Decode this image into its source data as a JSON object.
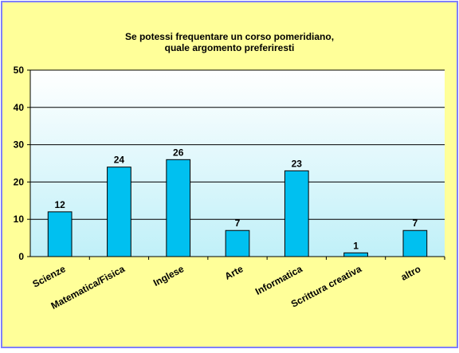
{
  "chart_data": {
    "type": "bar",
    "title": [
      "Se potessi  frequentare un corso  pomeridiano,",
      "quale argomento preferiresti"
    ],
    "xlabel": "",
    "ylabel": "",
    "categories": [
      "Scienze",
      "Matematica/Fisica",
      "Inglese",
      "Arte",
      "Informatica",
      "Scrittura creativa",
      "altro"
    ],
    "values": [
      12,
      24,
      26,
      7,
      23,
      1,
      7
    ],
    "ylim": [
      0,
      50
    ],
    "yticks": [
      0,
      10,
      20,
      30,
      40,
      50
    ],
    "grid": true,
    "legend": "none",
    "colors": {
      "bar": "#00C0F0",
      "bar_stroke": "#000000",
      "plot_top": "#FFFFFF",
      "plot_bottom": "#C0F0F8",
      "frame_outer": "#FFFF99",
      "frame_border": "#7F7FFF",
      "gridline": "#000000"
    }
  }
}
